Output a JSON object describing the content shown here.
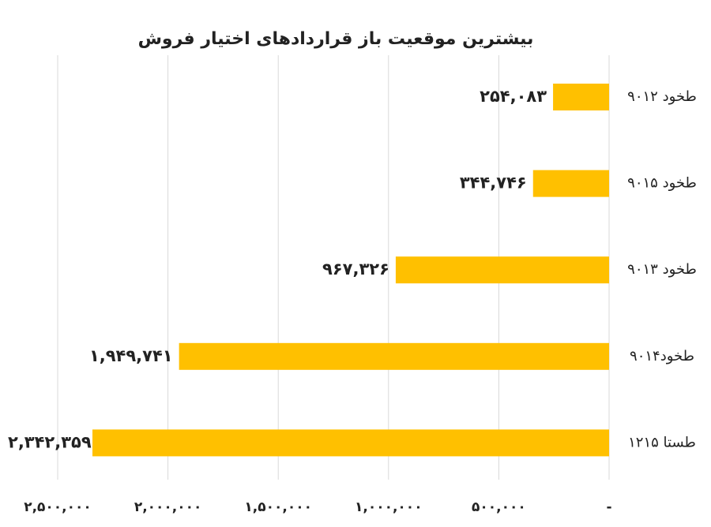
{
  "chart_data": {
    "type": "hbar",
    "title": "بیشترین موقعیت باز قراردادهای اختیار فروش",
    "categories": [
      "طخود ۹۰۱۲",
      "طخود ۹۰۱۵",
      "طخود ۹۰۱۳",
      "طخود۹۰۱۴",
      "طستا ۱۲۱۵"
    ],
    "values": [
      254083,
      344746,
      967326,
      1949741,
      2342359
    ],
    "value_labels": [
      "۲۵۴,۰۸۳",
      "۳۴۴,۷۴۶",
      "۹۶۷,۳۲۶",
      "۱,۹۴۹,۷۴۱",
      "۲,۳۴۲,۳۵۹"
    ],
    "color": "#FFC000",
    "xlim": [
      0,
      2500000
    ],
    "x_reversed": true,
    "xticks": [
      {
        "value": 0,
        "label": "-"
      },
      {
        "value": 500000,
        "label": "۵۰۰,۰۰۰"
      },
      {
        "value": 1000000,
        "label": "۱,۰۰۰,۰۰۰"
      },
      {
        "value": 1500000,
        "label": "۱,۵۰۰,۰۰۰"
      },
      {
        "value": 2000000,
        "label": "۲,۰۰۰,۰۰۰"
      },
      {
        "value": 2500000,
        "label": "۲,۵۰۰,۰۰۰"
      }
    ],
    "grid": true
  }
}
